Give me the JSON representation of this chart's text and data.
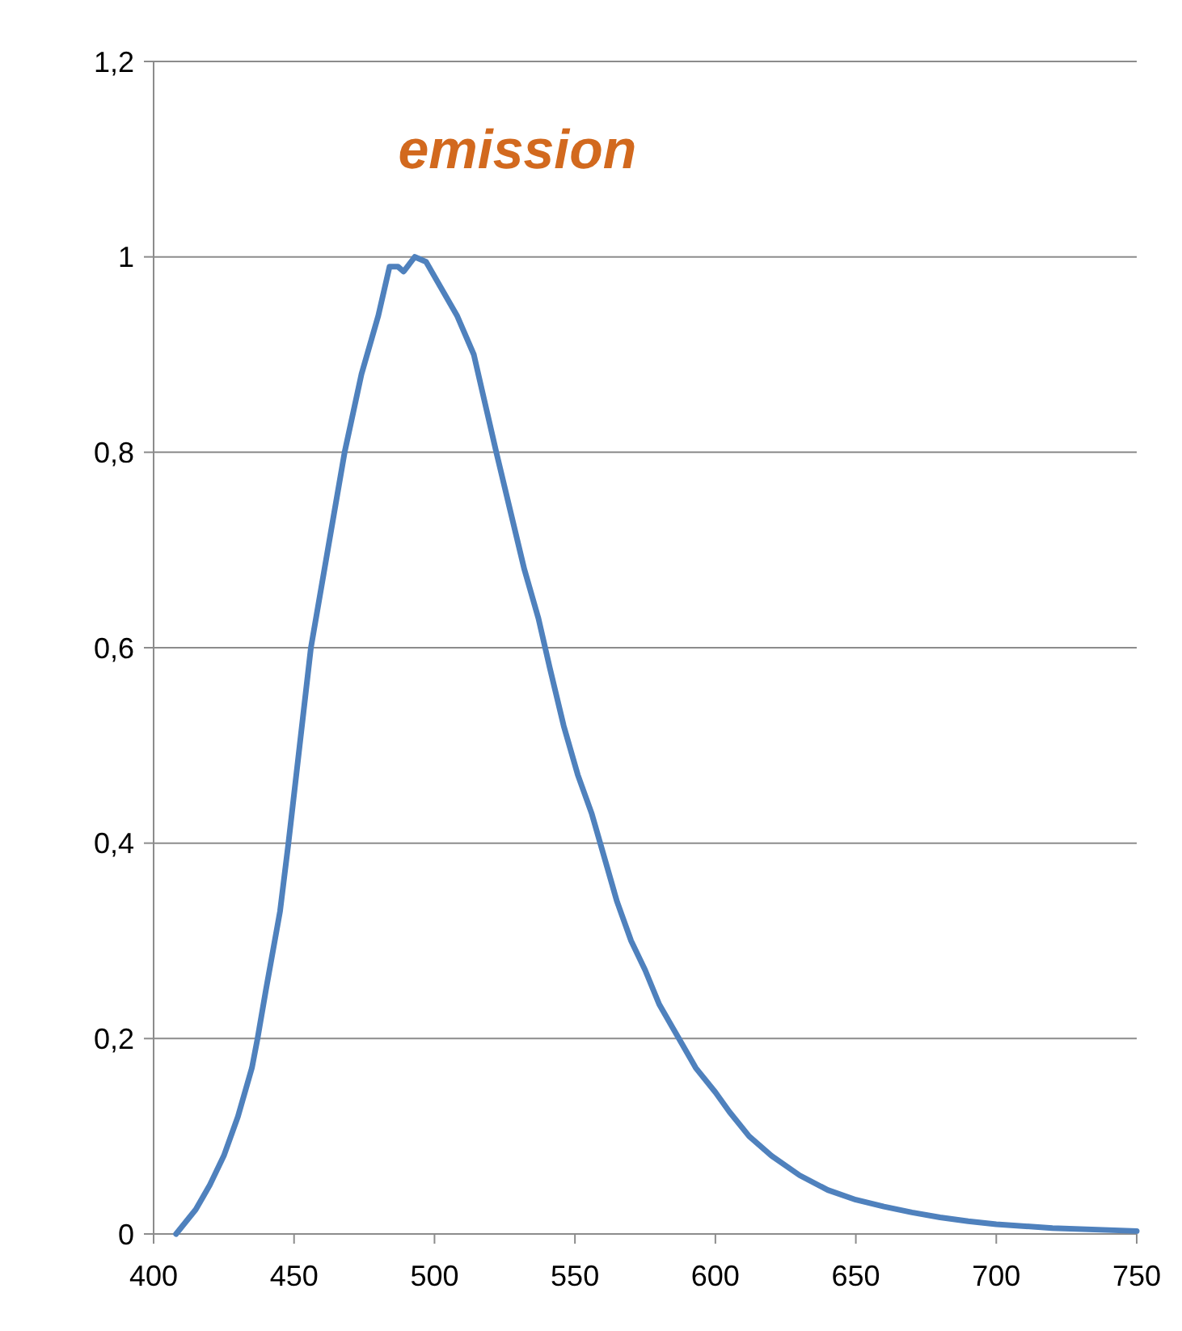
{
  "chart_data": {
    "type": "line",
    "title": "emission",
    "x": [
      408,
      415,
      420,
      425,
      430,
      435,
      437,
      440,
      445,
      448,
      452,
      456,
      462,
      468,
      474,
      480,
      484,
      487,
      489,
      493,
      497,
      502,
      508,
      514,
      518,
      522,
      527,
      532,
      537,
      541,
      546,
      551,
      556,
      560,
      565,
      570,
      575,
      580,
      587,
      593,
      600,
      605,
      612,
      620,
      630,
      640,
      650,
      660,
      670,
      680,
      690,
      700,
      720,
      750
    ],
    "series": [
      {
        "color": "#4f81bd",
        "values": [
          0,
          0.025,
          0.05,
          0.08,
          0.12,
          0.17,
          0.2,
          0.25,
          0.33,
          0.4,
          0.5,
          0.6,
          0.7,
          0.8,
          0.88,
          0.94,
          0.99,
          0.99,
          0.985,
          1.0,
          0.995,
          0.97,
          0.94,
          0.9,
          0.85,
          0.8,
          0.74,
          0.68,
          0.63,
          0.58,
          0.52,
          0.47,
          0.43,
          0.39,
          0.34,
          0.3,
          0.27,
          0.235,
          0.2,
          0.17,
          0.145,
          0.125,
          0.1,
          0.08,
          0.06,
          0.045,
          0.035,
          0.028,
          0.022,
          0.017,
          0.013,
          0.01,
          0.006,
          0.003
        ]
      }
    ],
    "xlim": [
      400,
      750
    ],
    "xticks": [
      400,
      450,
      500,
      550,
      600,
      650,
      700,
      750
    ],
    "ylim": [
      0,
      1.2
    ],
    "yticks": [
      0,
      {
        "value": 0.2,
        "label": "0,2"
      },
      {
        "value": 0.4,
        "label": "0,4"
      },
      {
        "value": 0.6,
        "label": "0,6"
      },
      {
        "value": 0.8,
        "label": "0,8"
      },
      1,
      {
        "value": 1.2,
        "label": "1,2"
      }
    ],
    "grid": "y",
    "marker": "none",
    "line_style": "solid"
  }
}
